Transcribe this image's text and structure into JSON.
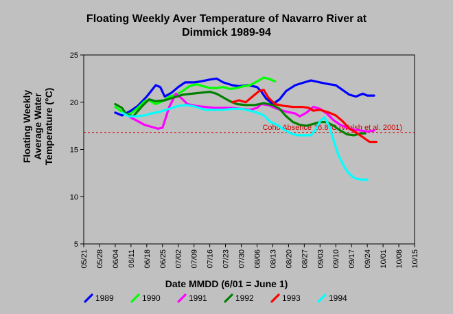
{
  "chart_data": {
    "type": "line",
    "title_lines": [
      "Floating Weekly Aver Temperature of Navarro River at",
      "Dimmick 1989-94"
    ],
    "xlabel": "Date MMDD (6/01 = June 1)",
    "ylabel_lines": [
      "Floating Weekly",
      "Average Water",
      "Temperature (°C)"
    ],
    "ylim": [
      5,
      25
    ],
    "yticks": [
      5,
      10,
      15,
      20,
      25
    ],
    "x_tick_labels": [
      "05/21",
      "05/28",
      "06/04",
      "06/11",
      "06/18",
      "06/25",
      "07/02",
      "07/09",
      "07/16",
      "07/23",
      "07/30",
      "08/06",
      "08/13",
      "08/20",
      "08/27",
      "09/03",
      "09/10",
      "09/17",
      "09/24",
      "10/01",
      "10/08",
      "10/15"
    ],
    "x_unit": "day of season, 0 = 05/21, ticks every 7 days",
    "xlim": [
      0,
      147
    ],
    "grid": false,
    "background": "#c0c0c0",
    "reference_line": {
      "y": 16.8,
      "label": "Coho Absence 16.8°C (Welsh et al. 2001)",
      "color": "#cc0000"
    },
    "legend_position": "bottom",
    "series": [
      {
        "name": "1989",
        "color": "#0000ff",
        "points": [
          [
            14,
            18.9
          ],
          [
            17,
            18.6
          ],
          [
            21,
            19.1
          ],
          [
            24,
            19.6
          ],
          [
            28,
            20.6
          ],
          [
            32,
            21.8
          ],
          [
            34,
            21.6
          ],
          [
            36,
            20.6
          ],
          [
            39,
            21.0
          ],
          [
            42,
            21.6
          ],
          [
            45,
            22.1
          ],
          [
            49,
            22.1
          ],
          [
            52,
            22.2
          ],
          [
            56,
            22.4
          ],
          [
            59,
            22.5
          ],
          [
            62,
            22.1
          ],
          [
            66,
            21.8
          ],
          [
            69,
            21.7
          ],
          [
            73,
            21.8
          ],
          [
            77,
            21.6
          ],
          [
            79,
            21.1
          ],
          [
            81,
            20.4
          ],
          [
            84,
            19.8
          ],
          [
            87,
            20.3
          ],
          [
            90,
            21.2
          ],
          [
            94,
            21.8
          ],
          [
            98,
            22.1
          ],
          [
            101,
            22.3
          ],
          [
            105,
            22.1
          ],
          [
            109,
            21.9
          ],
          [
            112,
            21.8
          ],
          [
            115,
            21.3
          ],
          [
            118,
            20.8
          ],
          [
            121,
            20.6
          ],
          [
            124,
            20.9
          ],
          [
            126,
            20.7
          ],
          [
            129,
            20.7
          ]
        ]
      },
      {
        "name": "1990",
        "color": "#00ff00",
        "points": [
          [
            14,
            19.5
          ],
          [
            17,
            19.0
          ],
          [
            19,
            18.7
          ],
          [
            21,
            18.8
          ],
          [
            24,
            19.4
          ],
          [
            27,
            20.1
          ],
          [
            29,
            20.2
          ],
          [
            32,
            19.8
          ],
          [
            35,
            20.1
          ],
          [
            38,
            20.6
          ],
          [
            41,
            20.8
          ],
          [
            44,
            21.2
          ],
          [
            47,
            21.7
          ],
          [
            50,
            21.9
          ],
          [
            53,
            21.7
          ],
          [
            56,
            21.5
          ],
          [
            59,
            21.5
          ],
          [
            62,
            21.6
          ],
          [
            65,
            21.4
          ],
          [
            68,
            21.5
          ],
          [
            71,
            21.7
          ],
          [
            74,
            21.8
          ],
          [
            77,
            22.2
          ],
          [
            80,
            22.6
          ],
          [
            82,
            22.5
          ],
          [
            85,
            22.2
          ]
        ]
      },
      {
        "name": "1991",
        "color": "#ff00ff",
        "points": [
          [
            20,
            18.5
          ],
          [
            24,
            18.0
          ],
          [
            27,
            17.6
          ],
          [
            30,
            17.4
          ],
          [
            33,
            17.2
          ],
          [
            35,
            17.3
          ],
          [
            38,
            19.5
          ],
          [
            41,
            20.9
          ],
          [
            44,
            20.3
          ],
          [
            46,
            19.8
          ],
          [
            50,
            19.6
          ],
          [
            54,
            19.5
          ],
          [
            58,
            19.4
          ],
          [
            62,
            19.4
          ],
          [
            66,
            19.4
          ],
          [
            70,
            19.3
          ],
          [
            74,
            19.2
          ],
          [
            77,
            19.4
          ],
          [
            79,
            19.8
          ],
          [
            82,
            19.7
          ],
          [
            86,
            19.3
          ],
          [
            90,
            19.0
          ],
          [
            94,
            18.8
          ],
          [
            96,
            18.5
          ],
          [
            99,
            18.9
          ],
          [
            102,
            19.5
          ],
          [
            105,
            19.3
          ],
          [
            108,
            18.8
          ],
          [
            111,
            18.1
          ],
          [
            114,
            17.6
          ],
          [
            117,
            17.3
          ],
          [
            120,
            17.1
          ],
          [
            123,
            17.0
          ],
          [
            126,
            16.9
          ],
          [
            129,
            17.0
          ]
        ]
      },
      {
        "name": "1992",
        "color": "#008000",
        "points": [
          [
            14,
            19.8
          ],
          [
            17,
            19.4
          ],
          [
            19,
            18.7
          ],
          [
            22,
            18.5
          ],
          [
            26,
            19.6
          ],
          [
            29,
            20.3
          ],
          [
            32,
            20.1
          ],
          [
            36,
            20.2
          ],
          [
            40,
            20.5
          ],
          [
            44,
            20.8
          ],
          [
            48,
            20.9
          ],
          [
            52,
            21.0
          ],
          [
            56,
            21.1
          ],
          [
            59,
            20.9
          ],
          [
            62,
            20.5
          ],
          [
            65,
            20.1
          ],
          [
            68,
            19.8
          ],
          [
            72,
            19.7
          ],
          [
            76,
            19.7
          ],
          [
            80,
            19.9
          ],
          [
            84,
            19.7
          ],
          [
            87,
            19.3
          ],
          [
            90,
            18.5
          ],
          [
            93,
            17.9
          ],
          [
            96,
            17.6
          ],
          [
            99,
            17.5
          ],
          [
            102,
            17.7
          ],
          [
            105,
            17.9
          ],
          [
            108,
            17.9
          ],
          [
            111,
            17.5
          ],
          [
            114,
            17.0
          ],
          [
            117,
            16.6
          ],
          [
            120,
            16.5
          ],
          [
            123,
            16.7
          ],
          [
            125,
            16.7
          ]
        ]
      },
      {
        "name": "1993",
        "color": "#ff0000",
        "points": [
          [
            66,
            20.0
          ],
          [
            69,
            20.2
          ],
          [
            72,
            20.0
          ],
          [
            75,
            20.6
          ],
          [
            78,
            21.2
          ],
          [
            80,
            21.3
          ],
          [
            82,
            20.5
          ],
          [
            85,
            19.8
          ],
          [
            89,
            19.6
          ],
          [
            93,
            19.5
          ],
          [
            97,
            19.5
          ],
          [
            100,
            19.4
          ],
          [
            102,
            19.1
          ],
          [
            105,
            19.2
          ],
          [
            109,
            18.9
          ],
          [
            112,
            18.6
          ],
          [
            115,
            18.0
          ],
          [
            118,
            17.2
          ],
          [
            121,
            16.8
          ],
          [
            124,
            16.3
          ],
          [
            127,
            15.8
          ],
          [
            130,
            15.8
          ]
        ]
      },
      {
        "name": "1994",
        "color": "#00ffff",
        "points": [
          [
            17,
            18.9
          ],
          [
            20,
            18.5
          ],
          [
            23,
            18.5
          ],
          [
            27,
            18.6
          ],
          [
            30,
            18.8
          ],
          [
            34,
            19.0
          ],
          [
            38,
            19.3
          ],
          [
            42,
            19.6
          ],
          [
            46,
            19.7
          ],
          [
            50,
            19.5
          ],
          [
            54,
            19.2
          ],
          [
            58,
            19.2
          ],
          [
            62,
            19.2
          ],
          [
            66,
            19.3
          ],
          [
            70,
            19.3
          ],
          [
            74,
            19.1
          ],
          [
            77,
            18.9
          ],
          [
            80,
            18.6
          ],
          [
            83,
            17.9
          ],
          [
            86,
            17.6
          ],
          [
            89,
            17.1
          ],
          [
            92,
            16.7
          ],
          [
            95,
            16.5
          ],
          [
            98,
            16.5
          ],
          [
            101,
            16.5
          ],
          [
            103,
            17.1
          ],
          [
            105,
            18.0
          ],
          [
            107,
            18.4
          ],
          [
            109,
            17.5
          ],
          [
            111,
            16.0
          ],
          [
            113,
            14.5
          ],
          [
            115,
            13.5
          ],
          [
            117,
            12.7
          ],
          [
            119,
            12.2
          ],
          [
            121,
            11.9
          ],
          [
            124,
            11.8
          ],
          [
            126,
            11.8
          ]
        ]
      }
    ]
  }
}
